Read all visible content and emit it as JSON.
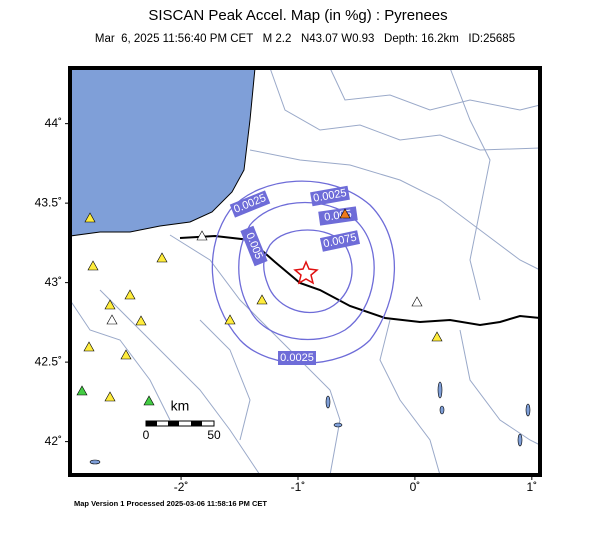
{
  "title": "SISCAN Peak Accel. Map (in %g) : Pyrenees",
  "subtitle": "Mar  6, 2025 11:56:40 PM CET   M 2.2   N43.07 W0.93   Depth: 16.2km   ID:25685",
  "map": {
    "xlim": [
      -2.95,
      1.07
    ],
    "ylim": [
      41.79,
      44.35
    ],
    "xticks": [
      {
        "value": -2,
        "label": "-2˚"
      },
      {
        "value": -1,
        "label": "-1˚"
      },
      {
        "value": 0,
        "label": "0˚"
      },
      {
        "value": 1,
        "label": "1˚"
      }
    ],
    "yticks": [
      {
        "value": 42,
        "label": "42˚"
      },
      {
        "value": 42.5,
        "label": "42.5˚"
      },
      {
        "value": 43,
        "label": "43˚"
      },
      {
        "value": 43.5,
        "label": "43.5˚"
      },
      {
        "value": 44,
        "label": "44˚"
      }
    ]
  },
  "contour_labels": [
    "0.0025",
    "0.0025",
    "0.005",
    "0.0075",
    "0.005",
    "0.0025"
  ],
  "scale_bar": {
    "unit": "km",
    "labels": [
      "0",
      "50"
    ]
  },
  "footer": "Map Version 1 Processed 2025-03-06 11:58:16 PM CET"
}
